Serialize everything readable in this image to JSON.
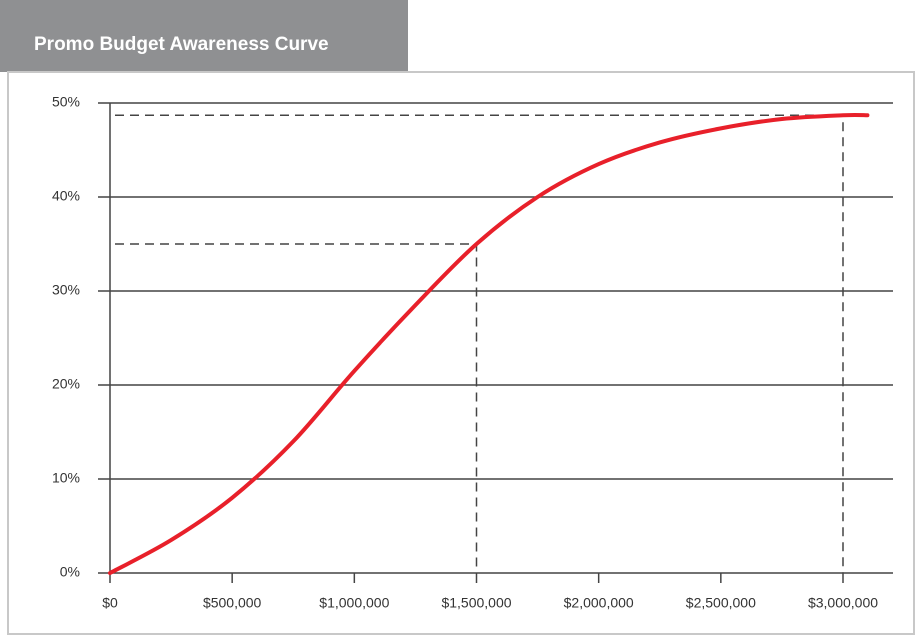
{
  "chart_data": {
    "type": "line",
    "title": "Promo Budget Awareness Curve",
    "x": [
      0,
      250000,
      500000,
      750000,
      1000000,
      1250000,
      1500000,
      1750000,
      2000000,
      2250000,
      2500000,
      2750000,
      3000000,
      3100000
    ],
    "series": [
      {
        "name": "Awareness",
        "color": "#e8202a",
        "values": [
          0,
          3.5,
          8,
          14,
          21.5,
          28.5,
          35,
          40,
          43.5,
          45.8,
          47.3,
          48.3,
          48.7,
          48.7
        ]
      }
    ],
    "reference_points": [
      {
        "x": 1500000,
        "y": 35
      },
      {
        "x": 3000000,
        "y": 48.7
      }
    ],
    "xlim": [
      0,
      3000000
    ],
    "xticks": [
      {
        "value": 0,
        "label": "$0"
      },
      {
        "value": 500000,
        "label": "$500,000"
      },
      {
        "value": 1000000,
        "label": "$1,000,000"
      },
      {
        "value": 1500000,
        "label": "$1,500,000"
      },
      {
        "value": 2000000,
        "label": "$2,000,000"
      },
      {
        "value": 2500000,
        "label": "$2,500,000"
      },
      {
        "value": 3000000,
        "label": "$3,000,000"
      }
    ],
    "ylim": [
      0,
      50
    ],
    "yticks": [
      {
        "value": 0,
        "label": "0%"
      },
      {
        "value": 10,
        "label": "10%"
      },
      {
        "value": 20,
        "label": "20%"
      },
      {
        "value": 30,
        "label": "30%"
      },
      {
        "value": 40,
        "label": "40%"
      },
      {
        "value": 50,
        "label": "50%"
      }
    ],
    "grid": true
  }
}
